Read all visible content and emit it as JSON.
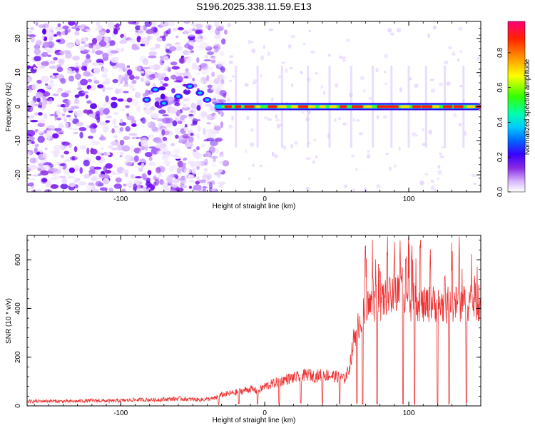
{
  "title": "S196.2025.338.11.59.E13",
  "chart_data": [
    {
      "type": "heatmap",
      "xlabel": "Height of straight line (km)",
      "ylabel": "Frequency (Hz)",
      "xlim": [
        -165,
        150
      ],
      "ylim": [
        -25,
        25
      ],
      "x_ticks": [
        -100,
        0,
        100
      ],
      "x_tick_labels": [
        "-100",
        "0",
        "100"
      ],
      "y_ticks": [
        -20,
        -10,
        0,
        10,
        20
      ],
      "y_tick_labels": [
        "-20",
        "-10",
        "0",
        "10",
        "20"
      ],
      "colorbar": {
        "label": "Normalized spectral amplitude",
        "range": [
          0,
          0.98
        ],
        "ticks": [
          0.0,
          0.2,
          0.4,
          0.6,
          0.8
        ],
        "tick_labels": [
          "0.0",
          "0.2",
          "0.4",
          "0.6",
          "0.8"
        ]
      },
      "description_series": {
        "ridge_frequency_hz": 0,
        "ridge_start_km": -35,
        "noise_region_km": [
          -165,
          -35
        ]
      }
    },
    {
      "type": "line",
      "xlabel": "Height of straight line (km)",
      "ylabel": "SNR (10 * v/v)",
      "xlim": [
        -165,
        150
      ],
      "ylim": [
        0,
        700
      ],
      "x_ticks": [
        -100,
        0,
        100
      ],
      "x_tick_labels": [
        "-100",
        "0",
        "100"
      ],
      "y_ticks": [
        0,
        200,
        400,
        600
      ],
      "y_tick_labels": [
        "0",
        "200",
        "400",
        "600"
      ],
      "color": "#ee3333",
      "series": [
        {
          "name": "SNR",
          "x": [
            -165,
            -150,
            -135,
            -120,
            -105,
            -90,
            -75,
            -60,
            -45,
            -35,
            -30,
            -20,
            -10,
            -5,
            0,
            5,
            10,
            15,
            20,
            25,
            30,
            35,
            40,
            45,
            50,
            55,
            58,
            60,
            62,
            65,
            70,
            75,
            80,
            85,
            90,
            95,
            100,
            105,
            110,
            115,
            120,
            125,
            130,
            135,
            140,
            145,
            150
          ],
          "y": [
            18,
            20,
            18,
            22,
            20,
            25,
            25,
            30,
            25,
            30,
            45,
            55,
            70,
            60,
            80,
            90,
            100,
            110,
            115,
            120,
            130,
            120,
            130,
            125,
            120,
            110,
            140,
            200,
            280,
            330,
            400,
            420,
            420,
            450,
            440,
            500,
            420,
            430,
            410,
            420,
            420,
            410,
            420,
            420,
            420,
            430,
            420
          ]
        }
      ]
    }
  ]
}
